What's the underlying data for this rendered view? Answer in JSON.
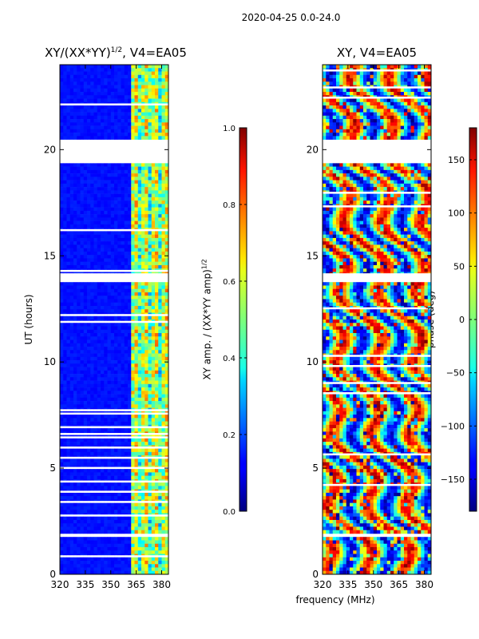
{
  "chart_data": {
    "suptitle": "2020-04-25 0.0-24.0",
    "xlabel": "frequency (MHz)",
    "panels": [
      {
        "title": "XY/(XX*YY)$^{1/2}$, V4=EA05",
        "title_main": "XY/(XX*YY)",
        "title_sup": "1/2",
        "title_tail": ", V4=EA05",
        "type": "heatmap",
        "ylabel": "UT (hours)",
        "xlim": [
          320,
          384
        ],
        "ylim": [
          0,
          24
        ],
        "xticks": [
          320,
          335,
          350,
          365,
          380
        ],
        "yticks": [
          0,
          5,
          10,
          15,
          20
        ],
        "colorbar": {
          "label": "XY amp. / (XX*YY amp)$^{1/2}$",
          "label_main": "XY amp. / (XX*YY amp)",
          "label_sup": "1/2",
          "range": [
            0.0,
            1.0
          ],
          "ticks": [
            0.0,
            0.2,
            0.4,
            0.6,
            0.8,
            1.0
          ],
          "tick_labels": [
            "0.0",
            "0.2",
            "0.4",
            "0.6",
            "0.8",
            "1.0"
          ],
          "colormap": "jet"
        }
      },
      {
        "title": "XY, V4=EA05",
        "type": "heatmap",
        "ylabel": "",
        "xlim": [
          320,
          384
        ],
        "ylim": [
          0,
          24
        ],
        "xticks": [
          320,
          335,
          350,
          365,
          380
        ],
        "yticks": [
          0,
          5,
          10,
          15,
          20
        ],
        "colorbar": {
          "label": "phase (deg)",
          "range": [
            -180,
            180
          ],
          "ticks": [
            -150,
            -100,
            -50,
            0,
            50,
            100,
            150
          ],
          "tick_labels": [
            "−150",
            "−100",
            "−50",
            "0",
            "50",
            "100",
            "150"
          ],
          "colormap": "jet"
        }
      }
    ],
    "flagged_time_ranges_hours": [
      [
        19.35,
        20.45
      ],
      [
        13.7,
        14.0
      ],
      [
        1.75,
        1.95
      ],
      [
        0.45,
        0.55
      ]
    ]
  }
}
